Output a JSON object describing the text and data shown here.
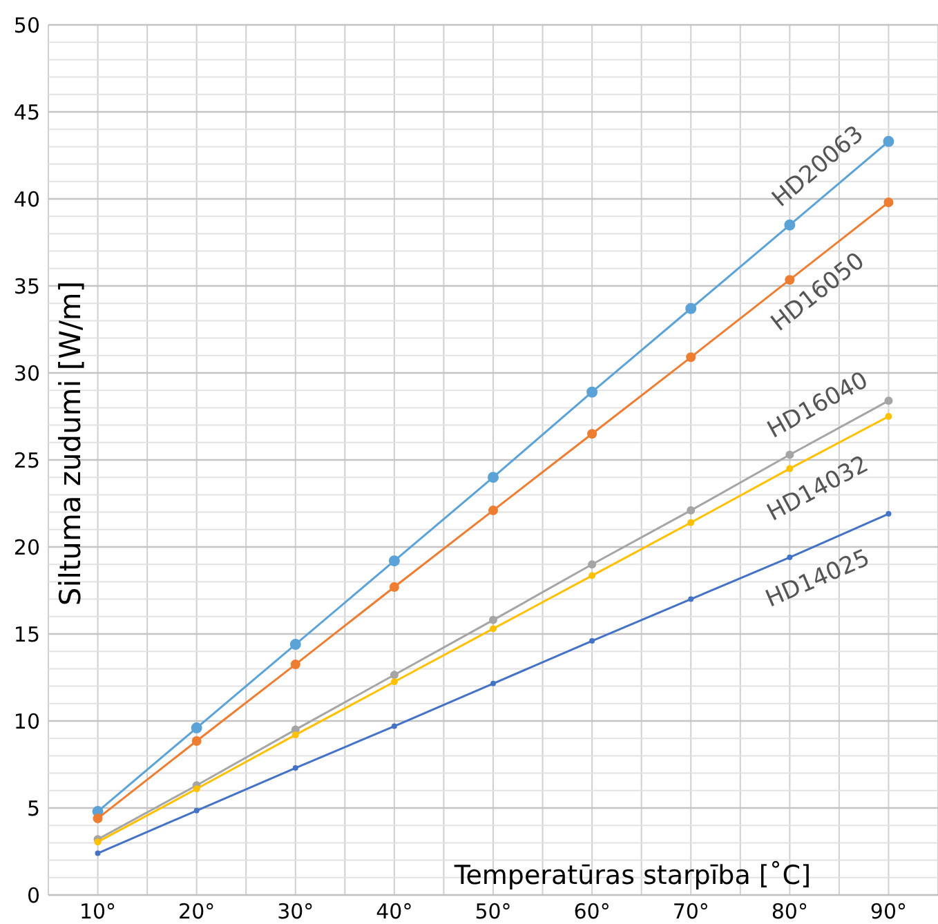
{
  "chart_data": {
    "type": "line",
    "xlabel": "Temperatūras starpība  [˚C]",
    "ylabel": "Siltuma zudumi [W/m]",
    "categories": [
      "10°",
      "20°",
      "30°",
      "40°",
      "50°",
      "60°",
      "70°",
      "80°",
      "90°"
    ],
    "ylim": [
      0,
      50
    ],
    "yticks": [
      0,
      {
        "value": 1,
        "label": null
      },
      {
        "value": 2,
        "label": null
      },
      {
        "value": 3,
        "label": null
      },
      {
        "value": 4,
        "label": null
      },
      5,
      {
        "value": 6,
        "label": null
      },
      {
        "value": 7,
        "label": null
      },
      {
        "value": 8,
        "label": null
      },
      {
        "value": 9,
        "label": null
      },
      10,
      {
        "value": 11,
        "label": null
      },
      {
        "value": 12,
        "label": null
      },
      {
        "value": 13,
        "label": null
      },
      {
        "value": 14,
        "label": null
      },
      15,
      {
        "value": 16,
        "label": null
      },
      {
        "value": 17,
        "label": null
      },
      {
        "value": 18,
        "label": null
      },
      {
        "value": 19,
        "label": null
      },
      20,
      {
        "value": 21,
        "label": null
      },
      {
        "value": 22,
        "label": null
      },
      {
        "value": 23,
        "label": null
      },
      {
        "value": 24,
        "label": null
      },
      25,
      {
        "value": 26,
        "label": null
      },
      {
        "value": 27,
        "label": null
      },
      {
        "value": 28,
        "label": null
      },
      {
        "value": 29,
        "label": null
      },
      30,
      {
        "value": 31,
        "label": null
      },
      {
        "value": 32,
        "label": null
      },
      {
        "value": 33,
        "label": null
      },
      {
        "value": 34,
        "label": null
      },
      35,
      {
        "value": 36,
        "label": null
      },
      {
        "value": 37,
        "label": null
      },
      {
        "value": 38,
        "label": null
      },
      {
        "value": 39,
        "label": null
      },
      40,
      {
        "value": 41,
        "label": null
      },
      {
        "value": 42,
        "label": null
      },
      {
        "value": 43,
        "label": null
      },
      {
        "value": 44,
        "label": null
      },
      45,
      {
        "value": 46,
        "label": null
      },
      {
        "value": 47,
        "label": null
      },
      {
        "value": 48,
        "label": null
      },
      {
        "value": 49,
        "label": null
      },
      50
    ],
    "grid": true,
    "legend": false,
    "marker": "circle",
    "series": [
      {
        "name": "HD20063",
        "color": "#5ba3d6",
        "values": [
          4.8,
          9.6,
          14.4,
          19.2,
          24.0,
          28.9,
          33.7,
          38.5,
          43.3
        ]
      },
      {
        "name": "HD16050",
        "color": "#ed7d31",
        "values": [
          4.4,
          8.85,
          13.25,
          17.7,
          22.1,
          26.5,
          30.9,
          35.35,
          39.8
        ]
      },
      {
        "name": "HD16040",
        "color": "#a5a5a5",
        "values": [
          3.2,
          6.3,
          9.5,
          12.65,
          15.8,
          19.0,
          22.1,
          25.3,
          28.4
        ]
      },
      {
        "name": "HD14032",
        "color": "#ffc000",
        "values": [
          3.05,
          6.1,
          9.2,
          12.25,
          15.3,
          18.35,
          21.4,
          24.5,
          27.5
        ]
      },
      {
        "name": "HD14025",
        "color": "#4472c4",
        "values": [
          2.4,
          4.85,
          7.3,
          9.7,
          12.15,
          14.6,
          17.0,
          19.4,
          21.9
        ]
      }
    ]
  }
}
